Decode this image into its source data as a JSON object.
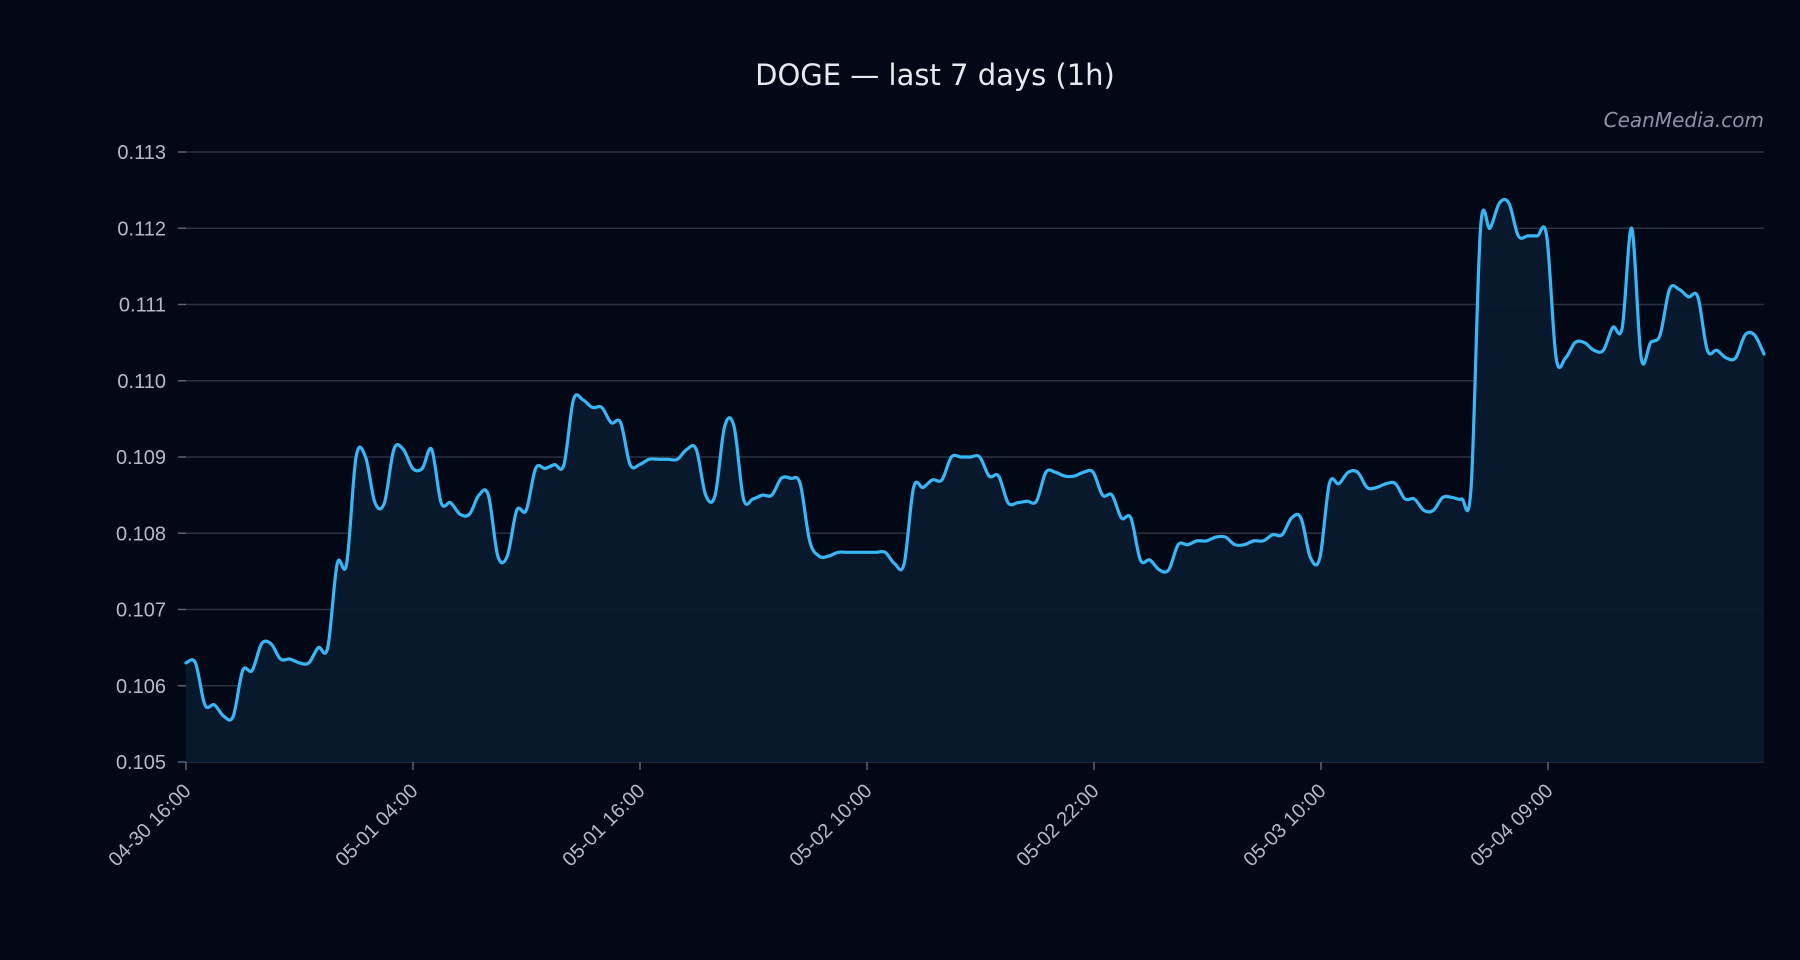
{
  "chart_data": {
    "type": "area",
    "title": "DOGE — last 7 days (1h)",
    "watermark": "CeanMedia.com",
    "xlabel": "",
    "ylabel": "",
    "ylim": [
      0.105,
      0.113
    ],
    "yticks": [
      "0.105",
      "0.106",
      "0.107",
      "0.108",
      "0.109",
      "0.110",
      "0.111",
      "0.112",
      "0.113"
    ],
    "xticks": [
      "04-30 16:00",
      "05-01 04:00",
      "05-01 16:00",
      "05-02 10:00",
      "05-02 22:00",
      "05-03 10:00",
      "05-04 09:00"
    ],
    "grid": true,
    "legend": "none",
    "colors": {
      "line": "#38b6f5",
      "fill": "#0a1a2e",
      "background": "#030817",
      "grid": "#2a3242"
    },
    "series": [
      {
        "values": [
          0.1063,
          0.1063,
          0.10575,
          0.10575,
          0.1056,
          0.1056,
          0.1062,
          0.1062,
          0.10655,
          0.10655,
          0.10635,
          0.10635,
          0.1063,
          0.1063,
          0.1065,
          0.1065,
          0.1076,
          0.1076,
          0.109,
          0.109,
          0.1084,
          0.1084,
          0.1091,
          0.1091,
          0.10885,
          0.10885,
          0.1091,
          0.1084,
          0.1084,
          0.10825,
          0.10825,
          0.1085,
          0.1085,
          0.1077,
          0.1077,
          0.1083,
          0.1083,
          0.10885,
          0.10885,
          0.1089,
          0.1089,
          0.10975,
          0.10975,
          0.10965,
          0.10965,
          0.10945,
          0.10945,
          0.1089,
          0.1089,
          0.10897,
          0.10897,
          0.10897,
          0.10897,
          0.1091,
          0.1091,
          0.1085,
          0.1085,
          0.1094,
          0.1094,
          0.10845,
          0.10845,
          0.1085,
          0.1085,
          0.10872,
          0.10872,
          0.10865,
          0.1079,
          0.1077,
          0.1077,
          0.10775,
          0.10775,
          0.10775,
          0.10775,
          0.10775,
          0.10775,
          0.1076,
          0.1076,
          0.1086,
          0.1086,
          0.1087,
          0.1087,
          0.109,
          0.109,
          0.109,
          0.109,
          0.10875,
          0.10875,
          0.1084,
          0.1084,
          0.10842,
          0.10842,
          0.1088,
          0.1088,
          0.10875,
          0.10875,
          0.1088,
          0.1088,
          0.1085,
          0.1085,
          0.1082,
          0.1082,
          0.10765,
          0.10765,
          0.10752,
          0.10752,
          0.10785,
          0.10785,
          0.1079,
          0.1079,
          0.10795,
          0.10795,
          0.10785,
          0.10785,
          0.1079,
          0.1079,
          0.10798,
          0.10798,
          0.1082,
          0.1082,
          0.10768,
          0.10768,
          0.10865,
          0.10865,
          0.1088,
          0.1088,
          0.1086,
          0.1086,
          0.10865,
          0.10865,
          0.10845,
          0.10845,
          0.1083,
          0.1083,
          0.10847,
          0.10847,
          0.10845,
          0.1086,
          0.112,
          0.112,
          0.11233,
          0.11233,
          0.1119,
          0.1119,
          0.1119,
          0.1119,
          0.1103,
          0.1103,
          0.1105,
          0.1105,
          0.1104,
          0.1104,
          0.1107,
          0.1107,
          0.112,
          0.1103,
          0.1105,
          0.1106,
          0.1112,
          0.1112,
          0.1111,
          0.1111,
          0.1104,
          0.1104,
          0.1103,
          0.1103,
          0.1106,
          0.1106,
          0.11035
        ]
      }
    ]
  }
}
